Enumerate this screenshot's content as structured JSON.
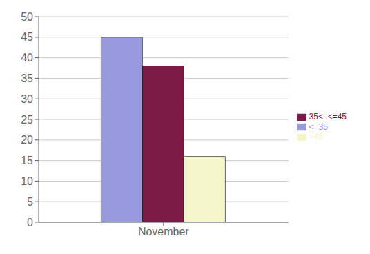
{
  "chart_data": {
    "type": "bar",
    "categories": [
      "November"
    ],
    "series": [
      {
        "name": "<=35",
        "color": "#9999dd",
        "values": [
          45
        ]
      },
      {
        "name": "35<..<=45",
        "color": "#7a1a45",
        "values": [
          38
        ]
      },
      {
        "name": ">45",
        "color": "#f5f5cc",
        "values": [
          16
        ]
      }
    ],
    "ylim": [
      0,
      50
    ],
    "yticks": [
      0,
      5,
      10,
      15,
      20,
      25,
      30,
      35,
      40,
      45,
      50
    ],
    "grid": true,
    "legend": "right"
  }
}
